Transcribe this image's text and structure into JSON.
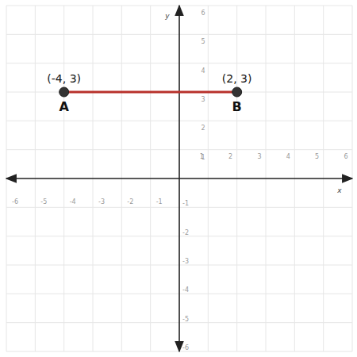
{
  "chart_data": {
    "type": "line",
    "x_label": "x",
    "y_label": "y",
    "x": [
      -4,
      2
    ],
    "values": [
      3,
      3
    ],
    "point_labels": [
      "A",
      "B"
    ],
    "coordinate_labels": [
      "(-4, 3)",
      "(2, 3)"
    ],
    "color": "#b8312b",
    "marker": "circle",
    "xlim": [
      -6,
      6
    ],
    "ylim": [
      -6,
      6
    ],
    "xticks": [
      -6,
      -5,
      -4,
      -3,
      -2,
      -1,
      1,
      2,
      3,
      4,
      5,
      6
    ],
    "yticks": [
      -6,
      -5,
      -4,
      -3,
      -2,
      -1,
      1,
      2,
      3,
      4,
      5,
      6
    ],
    "grid": true
  }
}
